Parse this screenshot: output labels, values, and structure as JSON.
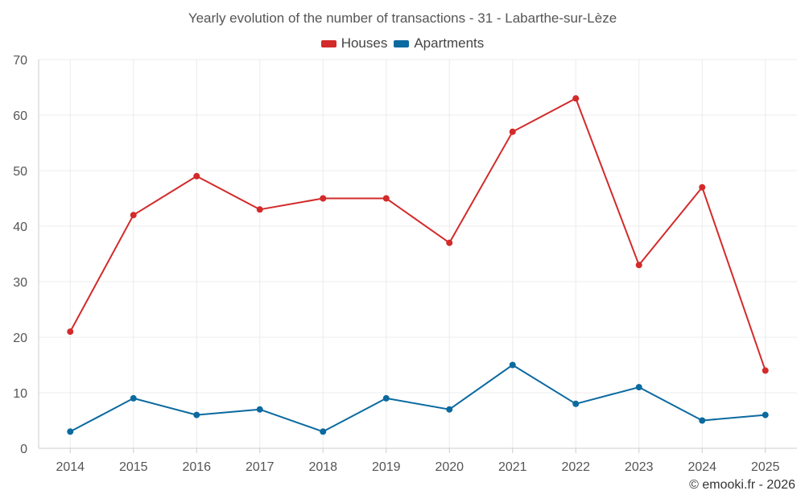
{
  "chart_data": {
    "type": "line",
    "title": "Yearly evolution of the number of transactions - 31 - Labarthe-sur-Lèze",
    "categories": [
      "2014",
      "2015",
      "2016",
      "2017",
      "2018",
      "2019",
      "2020",
      "2021",
      "2022",
      "2023",
      "2024",
      "2025"
    ],
    "series": [
      {
        "name": "Houses",
        "color": "#d32a2a",
        "values": [
          21,
          42,
          49,
          43,
          45,
          45,
          37,
          57,
          63,
          33,
          47,
          14
        ]
      },
      {
        "name": "Apartments",
        "color": "#0b6aa0",
        "values": [
          3,
          9,
          6,
          7,
          3,
          9,
          7,
          15,
          8,
          11,
          5,
          6
        ]
      }
    ],
    "xlabel": "",
    "ylabel": "",
    "ylim": [
      0,
      70
    ],
    "yticks": [
      0,
      10,
      20,
      30,
      40,
      50,
      60,
      70
    ],
    "grid": true,
    "legend": "top-center"
  },
  "credit": "© emooki.fr - 2026"
}
